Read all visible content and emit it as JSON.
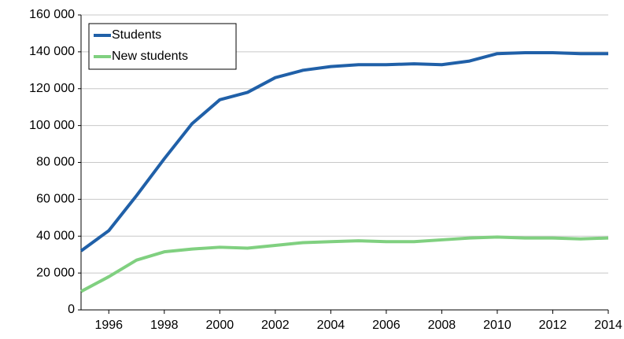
{
  "chart_data": {
    "type": "line",
    "x": [
      1995,
      1996,
      1997,
      1998,
      1999,
      2000,
      2001,
      2002,
      2003,
      2004,
      2005,
      2006,
      2007,
      2008,
      2009,
      2010,
      2011,
      2012,
      2013,
      2014
    ],
    "series": [
      {
        "name": "Students",
        "color": "#2060a8",
        "values": [
          32000,
          43000,
          62000,
          82000,
          101000,
          114000,
          118000,
          126000,
          130000,
          132000,
          133000,
          133000,
          133500,
          133000,
          135000,
          139000,
          139500,
          139500,
          139000,
          139000
        ]
      },
      {
        "name": "New students",
        "color": "#80d080",
        "values": [
          10000,
          18000,
          27000,
          31500,
          33000,
          34000,
          33500,
          35000,
          36500,
          37000,
          37500,
          37000,
          37000,
          38000,
          39000,
          39500,
          39000,
          39000,
          38500,
          39000
        ]
      }
    ],
    "xlim": [
      1995,
      2014
    ],
    "xticks": [
      1996,
      1998,
      2000,
      2002,
      2004,
      2006,
      2008,
      2010,
      2012,
      2014
    ],
    "ylim": [
      0,
      160000
    ],
    "yticks": [
      0,
      {
        "value": 20000,
        "label": "20 000"
      },
      {
        "value": 40000,
        "label": "40 000"
      },
      {
        "value": 60000,
        "label": "60 000"
      },
      {
        "value": 80000,
        "label": "80 000"
      },
      {
        "value": 100000,
        "label": "100 000"
      },
      {
        "value": 120000,
        "label": "120 000"
      },
      {
        "value": 140000,
        "label": "140 000"
      },
      {
        "value": 160000,
        "label": "160 000"
      }
    ],
    "grid": true,
    "legend": "upper left"
  }
}
